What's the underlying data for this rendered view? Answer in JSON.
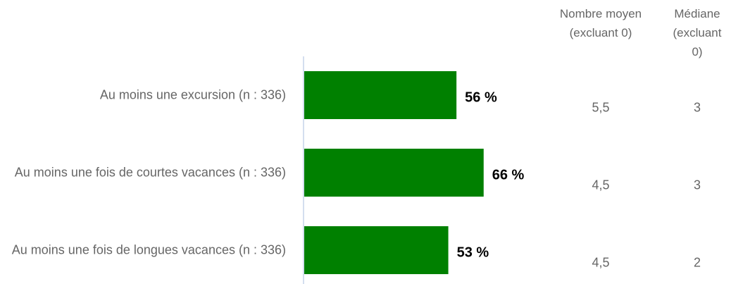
{
  "chart_data": {
    "type": "bar",
    "orientation": "horizontal",
    "categories": [
      "Au moins une excursion (n : 336)",
      "Au moins une fois de courtes vacances (n : 336)",
      "Au moins une fois de longues vacances (n : 336)"
    ],
    "values": [
      56,
      66,
      53
    ],
    "value_labels": [
      "56 %",
      "66 %",
      "53 %"
    ],
    "color": "#008000",
    "xlim": [
      0,
      100
    ],
    "columns": [
      {
        "header": "Nombre moyen (excluant 0)",
        "values": [
          "5,5",
          "4,5",
          "4,5"
        ]
      },
      {
        "header": "Médiane (excluant 0)",
        "values": [
          3,
          3,
          2
        ]
      }
    ]
  }
}
